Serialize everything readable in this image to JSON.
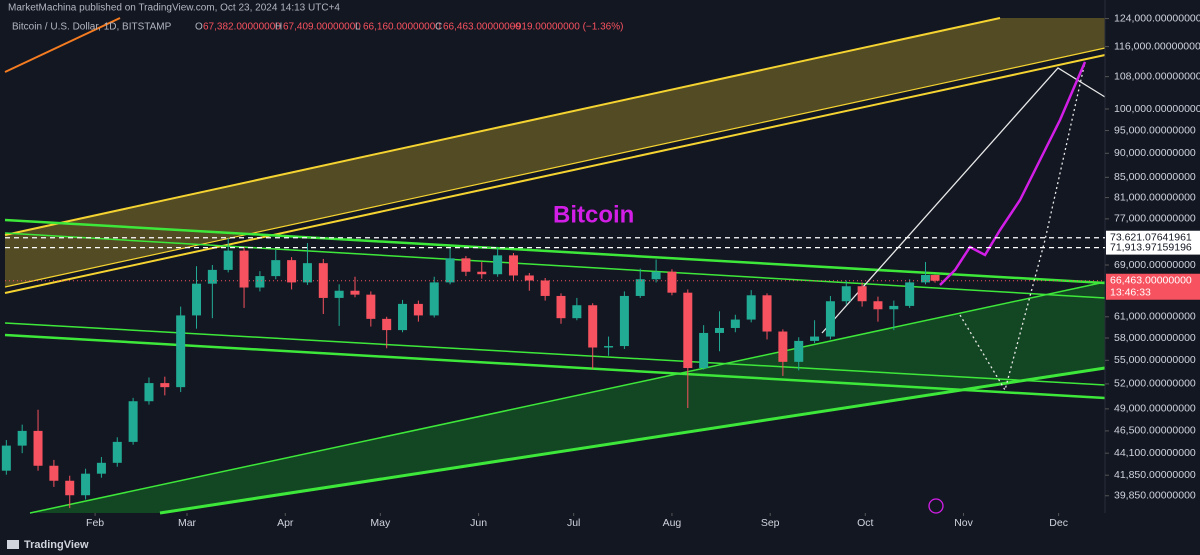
{
  "header": {
    "publisher": "MarketMachina published on TradingView.com, Oct 23, 2024 14:13 UTC+4",
    "symbol": "Bitcoin / U.S. Dollar, 1D, BITSTAMP",
    "ohlc": [
      {
        "key": "O",
        "value": "67,382.00000000"
      },
      {
        "key": "H",
        "value": "67,409.00000000"
      },
      {
        "key": "L",
        "value": "66,160.00000000"
      },
      {
        "key": "C",
        "value": "66,463.00000000"
      }
    ],
    "change": "−919.00000000 (−1.36%)"
  },
  "chart_data": {
    "type": "candlestick",
    "annotation": "Bitcoin",
    "log": true,
    "up_color": "#22ab94",
    "down_color": "#f7525f",
    "xlim": [
      1,
      349
    ],
    "ylim": [
      38250,
      129600
    ],
    "xticks": [
      {
        "value": 31,
        "label": "Feb"
      },
      {
        "value": 60,
        "label": "Mar"
      },
      {
        "value": 91,
        "label": "Apr"
      },
      {
        "value": 121,
        "label": "May"
      },
      {
        "value": 152,
        "label": "Jun"
      },
      {
        "value": 182,
        "label": "Jul"
      },
      {
        "value": 213,
        "label": "Aug"
      },
      {
        "value": 244,
        "label": "Sep"
      },
      {
        "value": 274,
        "label": "Oct"
      },
      {
        "value": 305,
        "label": "Nov"
      },
      {
        "value": 335,
        "label": "Dec"
      }
    ],
    "yticks": [
      {
        "value": 124000,
        "label": "124,000.00000000"
      },
      {
        "value": 116000,
        "label": "116,000.00000000"
      },
      {
        "value": 108000,
        "label": "108,000.00000000"
      },
      {
        "value": 100000,
        "label": "100,000.00000000"
      },
      {
        "value": 95000,
        "label": "95,000.00000000"
      },
      {
        "value": 90000,
        "label": "90,000.00000000"
      },
      {
        "value": 85000,
        "label": "85,000.00000000"
      },
      {
        "value": 81000,
        "label": "81,000.00000000"
      },
      {
        "value": 77000,
        "label": "77,000.00000000"
      },
      {
        "value": 69000,
        "label": "69,000.00000000"
      },
      {
        "value": 61000,
        "label": "61,000.00000000"
      },
      {
        "value": 58000,
        "label": "58,000.00000000"
      },
      {
        "value": 55000,
        "label": "55,000.00000000"
      },
      {
        "value": 52000,
        "label": "52,000.00000000"
      },
      {
        "value": 49000,
        "label": "49,000.00000000"
      },
      {
        "value": 46500,
        "label": "46,500.00000000"
      },
      {
        "value": 44100,
        "label": "44,100.00000000"
      },
      {
        "value": 41850,
        "label": "41,850.00000000"
      },
      {
        "value": 39850,
        "label": "39,850.00000000"
      }
    ],
    "x": [
      3,
      8,
      13,
      18,
      23,
      28,
      33,
      38,
      43,
      48,
      53,
      58,
      63,
      68,
      73,
      78,
      83,
      88,
      93,
      98,
      103,
      108,
      113,
      118,
      123,
      128,
      133,
      138,
      143,
      148,
      153,
      158,
      163,
      168,
      173,
      178,
      183,
      188,
      193,
      198,
      203,
      208,
      213,
      218,
      223,
      228,
      233,
      238,
      243,
      248,
      253,
      258,
      263,
      268,
      273,
      278,
      283,
      288,
      293,
      296
    ],
    "ohlc": [
      [
        42300,
        45500,
        41900,
        44900
      ],
      [
        44900,
        47200,
        44100,
        46500
      ],
      [
        46500,
        48900,
        42300,
        42800
      ],
      [
        42800,
        43400,
        40700,
        41300
      ],
      [
        41300,
        41800,
        38700,
        39900
      ],
      [
        39900,
        42500,
        39500,
        42000
      ],
      [
        42000,
        43700,
        41600,
        43100
      ],
      [
        43100,
        45800,
        42700,
        45300
      ],
      [
        45300,
        50300,
        45000,
        49900
      ],
      [
        49900,
        52800,
        49500,
        52100
      ],
      [
        52100,
        52900,
        50600,
        51600
      ],
      [
        51600,
        62500,
        51000,
        61200
      ],
      [
        61200,
        68800,
        59300,
        66000
      ],
      [
        66000,
        69000,
        60800,
        68200
      ],
      [
        68200,
        73600,
        67800,
        71400
      ],
      [
        71400,
        72000,
        62300,
        65400
      ],
      [
        65400,
        68000,
        64800,
        67200
      ],
      [
        67200,
        71500,
        66700,
        69800
      ],
      [
        69800,
        70300,
        65100,
        66200
      ],
      [
        66200,
        72700,
        65800,
        69300
      ],
      [
        69300,
        70000,
        61400,
        63800
      ],
      [
        63800,
        65900,
        59700,
        64900
      ],
      [
        64900,
        67100,
        63900,
        64300
      ],
      [
        64300,
        64800,
        59600,
        60700
      ],
      [
        60700,
        61000,
        56600,
        59100
      ],
      [
        59100,
        63500,
        58800,
        62900
      ],
      [
        62900,
        63400,
        60300,
        61200
      ],
      [
        61200,
        67100,
        60900,
        66200
      ],
      [
        66200,
        71900,
        65900,
        70100
      ],
      [
        70100,
        70500,
        67200,
        67900
      ],
      [
        67900,
        69500,
        66800,
        67500
      ],
      [
        67500,
        71900,
        67100,
        70600
      ],
      [
        70600,
        71000,
        66500,
        67300
      ],
      [
        67300,
        67700,
        64900,
        66500
      ],
      [
        66500,
        66900,
        63400,
        64100
      ],
      [
        64100,
        64500,
        60000,
        60800
      ],
      [
        60800,
        63800,
        60500,
        62700
      ],
      [
        62700,
        63000,
        53900,
        56700
      ],
      [
        56700,
        58200,
        55600,
        56900
      ],
      [
        56900,
        64800,
        56500,
        64100
      ],
      [
        64100,
        68400,
        63800,
        66700
      ],
      [
        66700,
        69900,
        66200,
        67900
      ],
      [
        67900,
        68300,
        64200,
        64600
      ],
      [
        64600,
        65100,
        49100,
        54000
      ],
      [
        54000,
        59800,
        53800,
        58700
      ],
      [
        58700,
        61800,
        56200,
        59400
      ],
      [
        59400,
        61300,
        58800,
        60600
      ],
      [
        60600,
        65000,
        60200,
        64200
      ],
      [
        64200,
        64500,
        57800,
        58900
      ],
      [
        58900,
        59200,
        53000,
        54800
      ],
      [
        54800,
        58100,
        53700,
        57600
      ],
      [
        57600,
        60500,
        57300,
        58200
      ],
      [
        58200,
        64100,
        57800,
        63300
      ],
      [
        63300,
        66500,
        62800,
        65600
      ],
      [
        65600,
        66200,
        62500,
        63300
      ],
      [
        63300,
        64000,
        60300,
        62100
      ],
      [
        62100,
        63400,
        59100,
        62600
      ],
      [
        62600,
        66700,
        62300,
        66200
      ],
      [
        66200,
        69500,
        65900,
        67382
      ],
      [
        67382,
        67409,
        66160,
        66463
      ]
    ],
    "price_lines": [
      {
        "value": 73621.07641961,
        "label": "73,621.07641961"
      },
      {
        "value": 71913.97159196,
        "label": "71,913.97159196"
      }
    ],
    "last_price": {
      "value": 66463,
      "label": "66,463.00000000",
      "countdown": "13:46:33"
    }
  },
  "footer": {
    "brand": "TradingView"
  }
}
